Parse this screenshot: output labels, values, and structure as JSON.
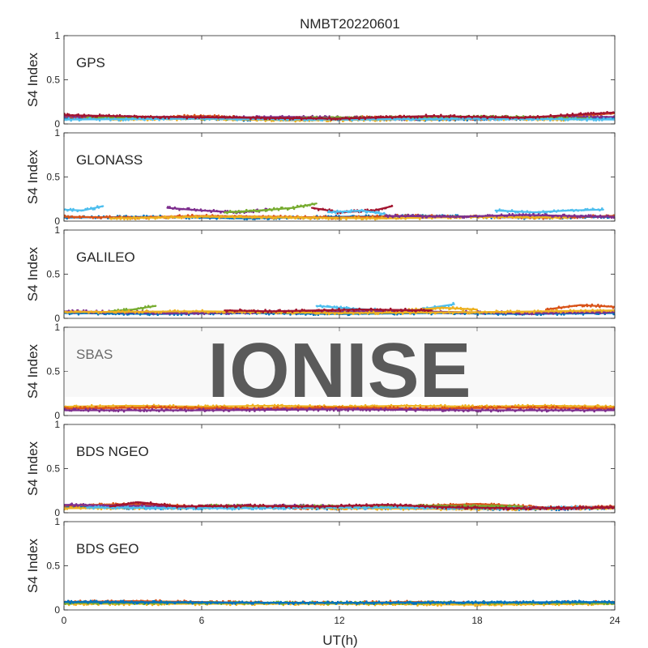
{
  "chart_data": {
    "type": "scatter",
    "title": "NMBT20220601",
    "xlabel": "UT(h)",
    "ylabel": "S4 Index",
    "xlim": [
      0,
      24
    ],
    "ylim": [
      0,
      1
    ],
    "xticks": [
      0,
      6,
      12,
      18,
      24
    ],
    "yticks": [
      0,
      0.5,
      1
    ],
    "x_tick_labels": [
      "0",
      "6",
      "12",
      "18",
      "24"
    ],
    "y_tick_labels": [
      "0",
      "0.5",
      "1"
    ],
    "grid": false,
    "legend": "none",
    "watermark": "IONISE",
    "series_colors": [
      "#0072BD",
      "#D95319",
      "#EDB120",
      "#7E2F8E",
      "#77AC30",
      "#4DBEEE",
      "#A2142F"
    ],
    "panels": [
      {
        "label": "GPS",
        "tracks": [
          {
            "color": "#0072BD",
            "x": [
              0,
              4,
              8,
              12,
              16,
              20,
              24
            ],
            "y": [
              0.06,
              0.07,
              0.05,
              0.06,
              0.05,
              0.06,
              0.07
            ]
          },
          {
            "color": "#D95319",
            "x": [
              0,
              3,
              6,
              9,
              12,
              15,
              18,
              21,
              24
            ],
            "y": [
              0.08,
              0.07,
              0.09,
              0.06,
              0.07,
              0.08,
              0.06,
              0.07,
              0.12
            ]
          },
          {
            "color": "#EDB120",
            "x": [
              2,
              6,
              10,
              14,
              18,
              22
            ],
            "y": [
              0.05,
              0.06,
              0.04,
              0.05,
              0.06,
              0.05
            ]
          },
          {
            "color": "#7E2F8E",
            "x": [
              0,
              5,
              10,
              15,
              20,
              24
            ],
            "y": [
              0.09,
              0.07,
              0.08,
              0.06,
              0.07,
              0.08
            ]
          },
          {
            "color": "#77AC30",
            "x": [
              1,
              7,
              13,
              19,
              23
            ],
            "y": [
              0.07,
              0.06,
              0.07,
              0.08,
              0.06
            ]
          },
          {
            "color": "#4DBEEE",
            "x": [
              0,
              6,
              12,
              18,
              24
            ],
            "y": [
              0.05,
              0.06,
              0.05,
              0.06,
              0.05
            ]
          },
          {
            "color": "#A2142F",
            "x": [
              0,
              4,
              8,
              12,
              16,
              20,
              24
            ],
            "y": [
              0.1,
              0.08,
              0.07,
              0.06,
              0.09,
              0.07,
              0.13
            ]
          }
        ]
      },
      {
        "label": "GLONASS",
        "tracks": [
          {
            "color": "#4DBEEE",
            "x": [
              0,
              0.8,
              1.7
            ],
            "y": [
              0.13,
              0.12,
              0.17
            ]
          },
          {
            "color": "#7E2F8E",
            "x": [
              4.5,
              6,
              7.5,
              9
            ],
            "y": [
              0.15,
              0.12,
              0.1,
              0.13
            ]
          },
          {
            "color": "#77AC30",
            "x": [
              7,
              8.5,
              10,
              11
            ],
            "y": [
              0.1,
              0.12,
              0.15,
              0.2
            ]
          },
          {
            "color": "#A2142F",
            "x": [
              10.8,
              12,
              13.5,
              14.3
            ],
            "y": [
              0.15,
              0.1,
              0.12,
              0.17
            ]
          },
          {
            "color": "#4DBEEE",
            "x": [
              11.5,
              13,
              14
            ],
            "y": [
              0.1,
              0.12,
              0.08
            ]
          },
          {
            "color": "#4DBEEE",
            "x": [
              18.8,
              20.5,
              22,
              23.5
            ],
            "y": [
              0.12,
              0.1,
              0.12,
              0.13
            ]
          },
          {
            "color": "#0072BD",
            "x": [
              0,
              4,
              8,
              12,
              16,
              20,
              24
            ],
            "y": [
              0.04,
              0.05,
              0.03,
              0.05,
              0.06,
              0.04,
              0.05
            ]
          },
          {
            "color": "#D95319",
            "x": [
              0,
              3,
              6,
              9,
              12,
              15,
              18,
              21,
              24
            ],
            "y": [
              0.05,
              0.04,
              0.06,
              0.05,
              0.04,
              0.06,
              0.05,
              0.04,
              0.06
            ]
          },
          {
            "color": "#EDB120",
            "x": [
              2,
              6,
              10,
              14,
              18,
              22
            ],
            "y": [
              0.03,
              0.05,
              0.04,
              0.03,
              0.05,
              0.04
            ]
          },
          {
            "color": "#7E2F8E",
            "x": [
              14,
              17,
              20,
              24
            ],
            "y": [
              0.06,
              0.05,
              0.07,
              0.05
            ]
          }
        ]
      },
      {
        "label": "GALILEO",
        "tracks": [
          {
            "color": "#77AC30",
            "x": [
              2,
              3,
              4
            ],
            "y": [
              0.08,
              0.1,
              0.14
            ]
          },
          {
            "color": "#4DBEEE",
            "x": [
              11,
              12.5,
              14
            ],
            "y": [
              0.14,
              0.11,
              0.09
            ]
          },
          {
            "color": "#4DBEEE",
            "x": [
              15.5,
              17
            ],
            "y": [
              0.1,
              0.16
            ]
          },
          {
            "color": "#EDB120",
            "x": [
              15,
              16.5,
              18
            ],
            "y": [
              0.09,
              0.12,
              0.1
            ]
          },
          {
            "color": "#D95319",
            "x": [
              21,
              22.5,
              24
            ],
            "y": [
              0.1,
              0.15,
              0.13
            ]
          },
          {
            "color": "#0072BD",
            "x": [
              0,
              4,
              8,
              12,
              16,
              20,
              24
            ],
            "y": [
              0.06,
              0.05,
              0.06,
              0.05,
              0.06,
              0.05,
              0.06
            ]
          },
          {
            "color": "#7E2F8E",
            "x": [
              0,
              5,
              10,
              15,
              20,
              24
            ],
            "y": [
              0.08,
              0.06,
              0.07,
              0.08,
              0.06,
              0.07
            ]
          },
          {
            "color": "#EDB120",
            "x": [
              0,
              6,
              12,
              18,
              24
            ],
            "y": [
              0.07,
              0.08,
              0.06,
              0.07,
              0.09
            ]
          },
          {
            "color": "#A2142F",
            "x": [
              7,
              9,
              13,
              16
            ],
            "y": [
              0.09,
              0.08,
              0.1,
              0.09
            ]
          }
        ]
      },
      {
        "label": "SBAS",
        "tracks": [
          {
            "color": "#EDB120",
            "x": [
              0,
              3,
              6,
              9,
              12,
              15,
              18,
              21,
              24
            ],
            "y": [
              0.1,
              0.11,
              0.1,
              0.11,
              0.1,
              0.11,
              0.1,
              0.11,
              0.1
            ]
          },
          {
            "color": "#D95319",
            "x": [
              0,
              4,
              8,
              12,
              16,
              20,
              24
            ],
            "y": [
              0.08,
              0.09,
              0.08,
              0.09,
              0.08,
              0.09,
              0.08
            ]
          },
          {
            "color": "#7E2F8E",
            "x": [
              0,
              6,
              12,
              18,
              24
            ],
            "y": [
              0.06,
              0.06,
              0.07,
              0.06,
              0.06
            ]
          }
        ]
      },
      {
        "label": "BDS NGEO",
        "tracks": [
          {
            "color": "#0072BD",
            "x": [
              0,
              4,
              8,
              12,
              16,
              20,
              24
            ],
            "y": [
              0.07,
              0.05,
              0.06,
              0.05,
              0.06,
              0.04,
              0.05
            ]
          },
          {
            "color": "#D95319",
            "x": [
              0,
              3,
              6,
              9,
              12,
              15,
              18,
              21,
              24
            ],
            "y": [
              0.08,
              0.1,
              0.07,
              0.06,
              0.05,
              0.07,
              0.1,
              0.06,
              0.07
            ]
          },
          {
            "color": "#EDB120",
            "x": [
              0,
              6,
              12,
              18,
              24
            ],
            "y": [
              0.05,
              0.06,
              0.05,
              0.04,
              0.05
            ]
          },
          {
            "color": "#7E2F8E",
            "x": [
              0,
              5,
              10,
              15,
              20,
              24
            ],
            "y": [
              0.09,
              0.07,
              0.08,
              0.06,
              0.05,
              0.06
            ]
          },
          {
            "color": "#77AC30",
            "x": [
              6,
              10,
              16,
              20
            ],
            "y": [
              0.08,
              0.07,
              0.08,
              0.07
            ]
          },
          {
            "color": "#4DBEEE",
            "x": [
              1,
              7,
              13,
              19,
              23
            ],
            "y": [
              0.06,
              0.05,
              0.06,
              0.05,
              0.06
            ]
          },
          {
            "color": "#A2142F",
            "x": [
              2,
              3.2,
              5,
              8,
              11,
              14,
              17,
              20,
              24
            ],
            "y": [
              0.07,
              0.12,
              0.07,
              0.08,
              0.07,
              0.09,
              0.06,
              0.05,
              0.06
            ]
          }
        ]
      },
      {
        "label": "BDS GEO",
        "tracks": [
          {
            "color": "#D95319",
            "x": [
              0,
              3,
              6,
              9,
              12,
              15,
              18,
              21,
              24
            ],
            "y": [
              0.09,
              0.1,
              0.09,
              0.08,
              0.08,
              0.09,
              0.08,
              0.08,
              0.09
            ]
          },
          {
            "color": "#EDB120",
            "x": [
              0,
              6,
              12,
              18,
              24
            ],
            "y": [
              0.07,
              0.07,
              0.07,
              0.06,
              0.07
            ]
          },
          {
            "color": "#77AC30",
            "x": [
              0,
              8,
              16,
              24
            ],
            "y": [
              0.08,
              0.08,
              0.08,
              0.08
            ]
          },
          {
            "color": "#0072BD",
            "x": [
              0,
              12,
              24
            ],
            "y": [
              0.09,
              0.08,
              0.09
            ]
          }
        ]
      }
    ]
  }
}
